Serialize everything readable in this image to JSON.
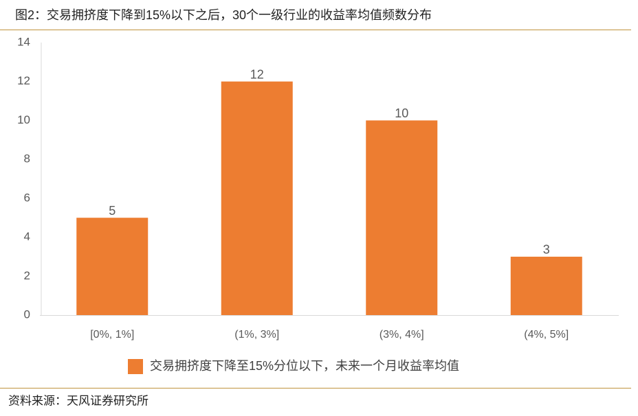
{
  "chart_data": {
    "type": "bar",
    "title": "图2：交易拥挤度下降到15%以下之后，30个一级行业的收益率均值频数分布",
    "categories": [
      "[0%, 1%]",
      "(1%, 3%]",
      "(3%, 4%]",
      "(4%, 5%]"
    ],
    "series": [
      {
        "name": "交易拥挤度下降至15%分位以下，未来一个月收益率均值",
        "color": "#ed7d31",
        "values": [
          5,
          12,
          10,
          3
        ]
      }
    ],
    "ylim": [
      0,
      14
    ],
    "yticks": [
      0,
      2,
      4,
      6,
      8,
      10,
      12,
      14
    ],
    "grid": false,
    "legend": "bottom",
    "source": "资料来源：天风证券研究所"
  }
}
